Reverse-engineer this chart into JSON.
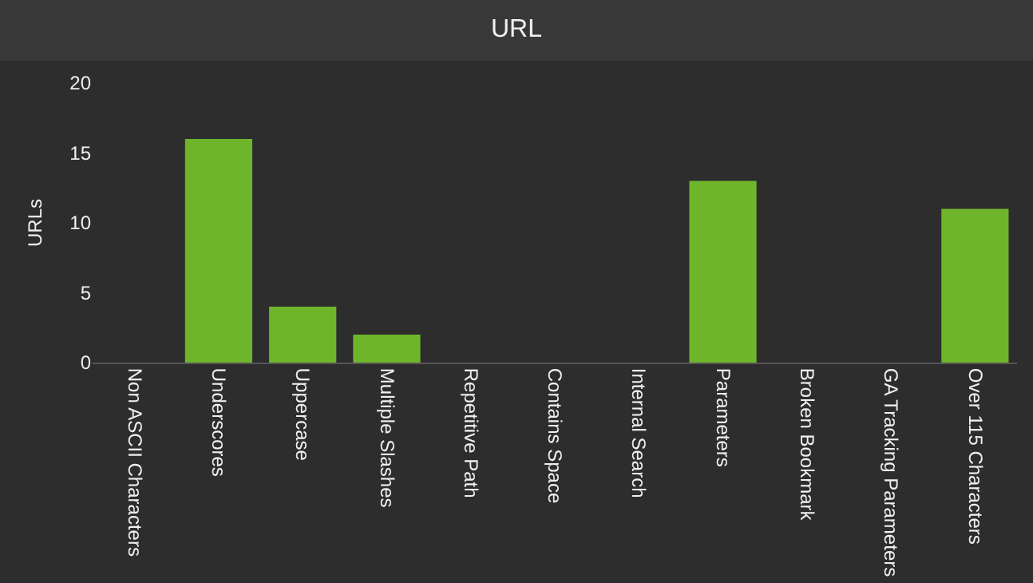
{
  "chart_data": {
    "type": "bar",
    "title": "URL",
    "ylabel": "URLs",
    "categories": [
      "Non ASCII Characters",
      "Underscores",
      "Uppercase",
      "Multiple Slashes",
      "Repetitive Path",
      "Contains Space",
      "Internal Search",
      "Parameters",
      "Broken Bookmark",
      "GA Tracking Parameters",
      "Over 115 Characters"
    ],
    "values": [
      0,
      16,
      4,
      2,
      0,
      0,
      0,
      13,
      0,
      0,
      11
    ],
    "color": "#6fb52c",
    "ylim": [
      0,
      20
    ],
    "yticks": [
      0,
      5,
      10,
      15,
      20
    ],
    "grid": false
  }
}
